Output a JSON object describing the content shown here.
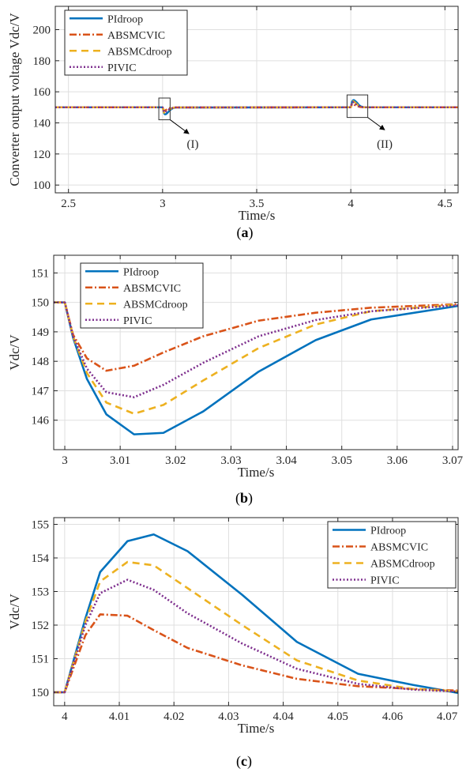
{
  "colors": {
    "PIdroop": "#0072BD",
    "ABSMCVIC": "#D95319",
    "ABSMCdroop": "#EDB120",
    "PIVIC": "#7E2F8E"
  },
  "chart_data": [
    {
      "id": "a",
      "type": "line",
      "panel_label": "(a)",
      "xlabel": "Time/s",
      "ylabel": "Converter output voltage Vdc/V",
      "xlim": [
        2.43,
        4.57
      ],
      "ylim": [
        95,
        215
      ],
      "xticks": [
        2.5,
        3,
        3.5,
        4,
        4.5
      ],
      "yticks": [
        100,
        120,
        140,
        160,
        180,
        200
      ],
      "grid": true,
      "legend": "top-left",
      "annotations": [
        {
          "label": "(I)",
          "box_x": [
            2.98,
            3.04
          ],
          "box_y": [
            142,
            156
          ],
          "arrow_from": [
            3.04,
            142
          ],
          "arrow_to": [
            3.14,
            133
          ],
          "text_x": [
            3.16
          ],
          "text_y": 124
        },
        {
          "label": "(II)",
          "box_x": [
            3.98,
            4.09
          ],
          "box_y": [
            143.5,
            158
          ],
          "arrow_from": [
            4.09,
            143.5
          ],
          "arrow_to": [
            4.18,
            135.5
          ],
          "text_x": [
            4.18
          ],
          "text_y": 124
        }
      ],
      "series": [
        {
          "name": "PIdroop",
          "x": [
            2.43,
            3.0,
            3.0075,
            3.0125,
            3.0175,
            3.025,
            3.035,
            3.045,
            3.055,
            3.07,
            4.0,
            4.0065,
            4.011,
            4.016,
            4.0225,
            4.033,
            4.043,
            4.053,
            4.065,
            4.08,
            4.57
          ],
          "y": [
            150,
            150,
            146.2,
            145.5,
            145.6,
            146.3,
            147.7,
            148.7,
            149.4,
            149.9,
            150,
            153.6,
            154.5,
            154.7,
            154.2,
            153,
            151.5,
            150.6,
            150.2,
            150,
            150
          ]
        },
        {
          "name": "ABSMCVIC",
          "x": [
            2.43,
            3.0,
            3.0075,
            3.0125,
            3.02,
            3.03,
            3.04,
            3.07,
            4.0,
            4.0065,
            4.011,
            4.016,
            4.023,
            4.033,
            4.05,
            4.07,
            4.57
          ],
          "y": [
            150,
            150,
            147.7,
            147.85,
            148.5,
            149.2,
            149.6,
            149.95,
            150,
            152.3,
            152.3,
            151.8,
            151.3,
            150.8,
            150.2,
            150,
            150
          ]
        },
        {
          "name": "ABSMCdroop",
          "x": [
            2.43,
            3.0,
            3.0075,
            3.0125,
            3.0175,
            3.025,
            3.035,
            3.045,
            3.055,
            3.07,
            4.0,
            4.0065,
            4.011,
            4.016,
            4.0225,
            4.033,
            4.043,
            4.055,
            4.07,
            4.57
          ],
          "y": [
            150,
            150,
            146.6,
            146.2,
            146.5,
            147.4,
            148.5,
            149.2,
            149.7,
            149.95,
            150,
            153.3,
            153.9,
            153.8,
            153.1,
            151.9,
            150.9,
            150.3,
            150,
            150
          ]
        },
        {
          "name": "PIVIC",
          "x": [
            2.43,
            3.0,
            3.0075,
            3.0125,
            3.0175,
            3.025,
            3.035,
            3.045,
            3.07,
            4.0,
            4.0065,
            4.011,
            4.016,
            4.0225,
            4.033,
            4.043,
            4.055,
            4.07,
            4.57
          ],
          "y": [
            150,
            150,
            147,
            146.8,
            147.2,
            147.9,
            148.8,
            149.4,
            149.95,
            150,
            152.9,
            153.35,
            153.1,
            152.4,
            151.4,
            150.7,
            150.3,
            150,
            150
          ]
        }
      ]
    },
    {
      "id": "b",
      "type": "line",
      "panel_label": "(b)",
      "xlabel": "Time/s",
      "ylabel": "Vdc/V",
      "xlim": [
        2.998,
        3.071
      ],
      "ylim": [
        145,
        151.6
      ],
      "xticks": [
        3,
        3.01,
        3.02,
        3.03,
        3.04,
        3.05,
        3.06,
        3.07
      ],
      "yticks": [
        146,
        147,
        148,
        149,
        150,
        151
      ],
      "grid": true,
      "legend": "top-left",
      "series": [
        {
          "name": "PIdroop",
          "x": [
            2.998,
            3.0,
            3.0015,
            3.004,
            3.0075,
            3.0125,
            3.0178,
            3.025,
            3.035,
            3.0453,
            3.0553,
            3.071
          ],
          "y": [
            150,
            150,
            148.8,
            147.4,
            146.2,
            145.52,
            145.57,
            146.3,
            147.65,
            148.72,
            149.42,
            149.88
          ]
        },
        {
          "name": "ABSMCVIC",
          "x": [
            2.998,
            3.0,
            3.0015,
            3.004,
            3.0075,
            3.0125,
            3.0178,
            3.025,
            3.035,
            3.0453,
            3.0553,
            3.071
          ],
          "y": [
            150,
            150,
            148.9,
            148.1,
            147.68,
            147.85,
            148.3,
            148.85,
            149.38,
            149.65,
            149.82,
            149.94
          ]
        },
        {
          "name": "ABSMCdroop",
          "x": [
            2.998,
            3.0,
            3.0015,
            3.004,
            3.0075,
            3.0125,
            3.0178,
            3.025,
            3.035,
            3.0453,
            3.0553,
            3.071
          ],
          "y": [
            150,
            150,
            148.85,
            147.6,
            146.6,
            146.22,
            146.52,
            147.35,
            148.45,
            149.25,
            149.7,
            149.93
          ]
        },
        {
          "name": "PIVIC",
          "x": [
            2.998,
            3.0,
            3.0015,
            3.004,
            3.0075,
            3.0125,
            3.0178,
            3.025,
            3.035,
            3.0453,
            3.0553,
            3.071
          ],
          "y": [
            150,
            150,
            148.85,
            147.75,
            146.95,
            146.78,
            147.2,
            147.95,
            148.85,
            149.4,
            149.7,
            149.9
          ]
        }
      ]
    },
    {
      "id": "c",
      "type": "line",
      "panel_label": "(c)",
      "xlabel": "Time/s",
      "ylabel": "Vdc/V",
      "xlim": [
        3.998,
        4.072
      ],
      "ylim": [
        149.6,
        155.2
      ],
      "xticks": [
        4,
        4.01,
        4.02,
        4.03,
        4.04,
        4.05,
        4.06,
        4.07
      ],
      "yticks": [
        150,
        151,
        152,
        153,
        154,
        155
      ],
      "grid": true,
      "legend": "top-right",
      "series": [
        {
          "name": "PIdroop",
          "x": [
            3.998,
            4.0,
            4.0038,
            4.0065,
            4.0115,
            4.0163,
            4.0225,
            4.0325,
            4.0425,
            4.0537,
            4.0637,
            4.072
          ],
          "y": [
            150,
            150,
            152.2,
            153.58,
            154.5,
            154.7,
            154.2,
            152.9,
            151.5,
            150.55,
            150.22,
            149.98
          ]
        },
        {
          "name": "ABSMCVIC",
          "x": [
            3.998,
            4.0,
            4.0038,
            4.0065,
            4.0115,
            4.0163,
            4.0225,
            4.0325,
            4.0425,
            4.0537,
            4.0637,
            4.072
          ],
          "y": [
            150,
            150,
            151.7,
            152.32,
            152.28,
            151.85,
            151.32,
            150.8,
            150.4,
            150.18,
            150.1,
            150.05
          ]
        },
        {
          "name": "ABSMCdroop",
          "x": [
            3.998,
            4.0,
            4.0038,
            4.0065,
            4.0115,
            4.0163,
            4.0225,
            4.0325,
            4.0425,
            4.0537,
            4.0637,
            4.072
          ],
          "y": [
            150,
            150,
            152.1,
            153.3,
            153.88,
            153.78,
            153.1,
            152,
            150.95,
            150.35,
            150.1,
            150.03
          ]
        },
        {
          "name": "PIVIC",
          "x": [
            3.998,
            4.0,
            4.0038,
            4.0065,
            4.0115,
            4.0163,
            4.0225,
            4.0325,
            4.0425,
            4.0537,
            4.0637,
            4.072
          ],
          "y": [
            150,
            150,
            152,
            152.95,
            153.35,
            153.05,
            152.35,
            151.45,
            150.7,
            150.25,
            150.08,
            150.02
          ]
        }
      ]
    }
  ]
}
